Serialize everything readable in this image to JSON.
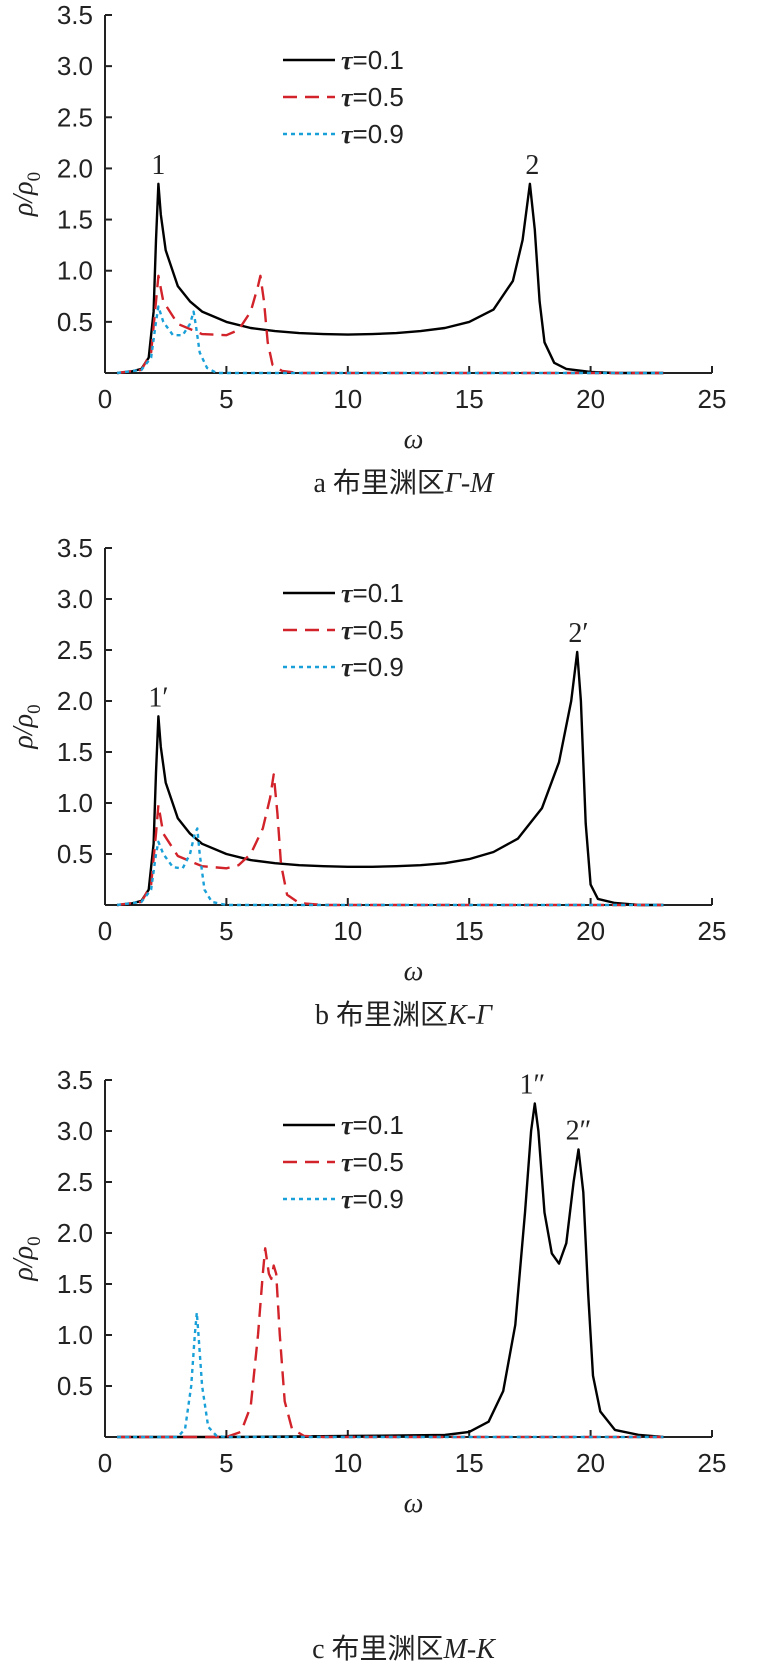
{
  "chart_data": [
    {
      "type": "line",
      "panel": "a",
      "caption": {
        "prefix": "a 布里渊区",
        "region": "Γ-M"
      },
      "xlabel": "ω",
      "ylabel": "ρ/ρ0",
      "xlim": [
        0,
        25
      ],
      "ylim": [
        0,
        3.5
      ],
      "xticks": [
        "0",
        "5",
        "10",
        "15",
        "20",
        "25"
      ],
      "yticks": [
        "0.5",
        "1.0",
        "1.5",
        "2.0",
        "2.5",
        "3.0",
        "3.5"
      ],
      "legend_position": "top-left",
      "peak_labels": [
        {
          "text": "1",
          "x": 2.2,
          "y": 1.85
        },
        {
          "text": "2",
          "x": 17.6,
          "y": 1.85
        }
      ],
      "series": [
        {
          "name": "τ=0.1",
          "style": "solid",
          "color": "#000000",
          "points": [
            [
              0.5,
              0.0
            ],
            [
              1.0,
              0.01
            ],
            [
              1.5,
              0.04
            ],
            [
              1.8,
              0.15
            ],
            [
              2.0,
              0.6
            ],
            [
              2.1,
              1.3
            ],
            [
              2.2,
              1.85
            ],
            [
              2.3,
              1.55
            ],
            [
              2.5,
              1.2
            ],
            [
              3.0,
              0.85
            ],
            [
              3.5,
              0.7
            ],
            [
              4,
              0.6
            ],
            [
              5,
              0.5
            ],
            [
              6,
              0.44
            ],
            [
              7,
              0.41
            ],
            [
              8,
              0.39
            ],
            [
              9,
              0.38
            ],
            [
              10,
              0.375
            ],
            [
              11,
              0.38
            ],
            [
              12,
              0.39
            ],
            [
              13,
              0.41
            ],
            [
              14,
              0.44
            ],
            [
              15,
              0.5
            ],
            [
              16,
              0.62
            ],
            [
              16.8,
              0.9
            ],
            [
              17.2,
              1.3
            ],
            [
              17.5,
              1.85
            ],
            [
              17.7,
              1.4
            ],
            [
              17.9,
              0.7
            ],
            [
              18.1,
              0.3
            ],
            [
              18.5,
              0.1
            ],
            [
              19,
              0.04
            ],
            [
              20,
              0.01
            ],
            [
              21,
              0.0
            ],
            [
              23,
              0.0
            ]
          ]
        },
        {
          "name": "τ=0.5",
          "style": "dashed",
          "color": "#d2232a",
          "points": [
            [
              0.5,
              0.0
            ],
            [
              1.5,
              0.03
            ],
            [
              1.9,
              0.2
            ],
            [
              2.1,
              0.7
            ],
            [
              2.2,
              0.95
            ],
            [
              2.4,
              0.7
            ],
            [
              3.0,
              0.48
            ],
            [
              4,
              0.38
            ],
            [
              5,
              0.37
            ],
            [
              5.5,
              0.42
            ],
            [
              6.0,
              0.6
            ],
            [
              6.3,
              0.85
            ],
            [
              6.4,
              0.95
            ],
            [
              6.55,
              0.7
            ],
            [
              6.7,
              0.3
            ],
            [
              6.9,
              0.08
            ],
            [
              7.3,
              0.02
            ],
            [
              8,
              0.0
            ],
            [
              23,
              0.0
            ]
          ]
        },
        {
          "name": "τ=0.9",
          "style": "dotted",
          "color": "#1aa0d8",
          "points": [
            [
              0.5,
              0.0
            ],
            [
              1.5,
              0.03
            ],
            [
              1.9,
              0.15
            ],
            [
              2.1,
              0.5
            ],
            [
              2.2,
              0.65
            ],
            [
              2.4,
              0.5
            ],
            [
              2.8,
              0.37
            ],
            [
              3.2,
              0.37
            ],
            [
              3.5,
              0.48
            ],
            [
              3.65,
              0.6
            ],
            [
              3.75,
              0.45
            ],
            [
              3.9,
              0.2
            ],
            [
              4.2,
              0.05
            ],
            [
              4.6,
              0.0
            ],
            [
              23,
              0.0
            ]
          ]
        }
      ]
    },
    {
      "type": "line",
      "panel": "b",
      "caption": {
        "prefix": "b 布里渊区",
        "region": "K-Γ"
      },
      "xlabel": "ω",
      "ylabel": "ρ/ρ0",
      "xlim": [
        0,
        25
      ],
      "ylim": [
        0,
        3.5
      ],
      "xticks": [
        "0",
        "5",
        "10",
        "15",
        "20",
        "25"
      ],
      "yticks": [
        "0.5",
        "1.0",
        "1.5",
        "2.0",
        "2.5",
        "3.0",
        "3.5"
      ],
      "legend_position": "top-left",
      "peak_labels": [
        {
          "text": "1′",
          "x": 2.2,
          "y": 1.85
        },
        {
          "text": "2′",
          "x": 19.5,
          "y": 2.48
        }
      ],
      "series": [
        {
          "name": "τ=0.1",
          "style": "solid",
          "color": "#000000",
          "points": [
            [
              0.5,
              0.0
            ],
            [
              1.0,
              0.01
            ],
            [
              1.5,
              0.04
            ],
            [
              1.8,
              0.15
            ],
            [
              2.0,
              0.6
            ],
            [
              2.1,
              1.3
            ],
            [
              2.2,
              1.85
            ],
            [
              2.3,
              1.55
            ],
            [
              2.5,
              1.2
            ],
            [
              3.0,
              0.85
            ],
            [
              3.5,
              0.7
            ],
            [
              4,
              0.6
            ],
            [
              5,
              0.5
            ],
            [
              6,
              0.44
            ],
            [
              7,
              0.41
            ],
            [
              8,
              0.39
            ],
            [
              9,
              0.38
            ],
            [
              10,
              0.375
            ],
            [
              11,
              0.375
            ],
            [
              12,
              0.38
            ],
            [
              13,
              0.39
            ],
            [
              14,
              0.41
            ],
            [
              15,
              0.45
            ],
            [
              16,
              0.52
            ],
            [
              17,
              0.65
            ],
            [
              18,
              0.95
            ],
            [
              18.7,
              1.4
            ],
            [
              19.2,
              2.0
            ],
            [
              19.45,
              2.48
            ],
            [
              19.6,
              2.0
            ],
            [
              19.8,
              0.8
            ],
            [
              20.0,
              0.2
            ],
            [
              20.3,
              0.06
            ],
            [
              21,
              0.02
            ],
            [
              22,
              0.0
            ],
            [
              23,
              0.0
            ]
          ]
        },
        {
          "name": "τ=0.5",
          "style": "dashed",
          "color": "#d2232a",
          "points": [
            [
              0.5,
              0.0
            ],
            [
              1.5,
              0.03
            ],
            [
              1.9,
              0.2
            ],
            [
              2.1,
              0.7
            ],
            [
              2.2,
              0.98
            ],
            [
              2.4,
              0.7
            ],
            [
              3.0,
              0.48
            ],
            [
              4,
              0.38
            ],
            [
              5,
              0.36
            ],
            [
              5.5,
              0.39
            ],
            [
              6.0,
              0.5
            ],
            [
              6.5,
              0.75
            ],
            [
              6.8,
              1.05
            ],
            [
              6.95,
              1.28
            ],
            [
              7.1,
              0.9
            ],
            [
              7.25,
              0.4
            ],
            [
              7.5,
              0.1
            ],
            [
              8,
              0.02
            ],
            [
              9,
              0.0
            ],
            [
              23,
              0.0
            ]
          ]
        },
        {
          "name": "τ=0.9",
          "style": "dotted",
          "color": "#1aa0d8",
          "points": [
            [
              0.5,
              0.0
            ],
            [
              1.5,
              0.03
            ],
            [
              1.9,
              0.15
            ],
            [
              2.1,
              0.5
            ],
            [
              2.2,
              0.62
            ],
            [
              2.4,
              0.5
            ],
            [
              2.8,
              0.37
            ],
            [
              3.2,
              0.36
            ],
            [
              3.5,
              0.5
            ],
            [
              3.7,
              0.7
            ],
            [
              3.8,
              0.75
            ],
            [
              3.9,
              0.5
            ],
            [
              4.1,
              0.15
            ],
            [
              4.4,
              0.03
            ],
            [
              5,
              0.0
            ],
            [
              23,
              0.0
            ]
          ]
        }
      ]
    },
    {
      "type": "line",
      "panel": "c",
      "caption": {
        "prefix": "c 布里渊区",
        "region": "M-K"
      },
      "xlabel": "ω",
      "ylabel": "ρ/ρ0",
      "xlim": [
        0,
        25
      ],
      "ylim": [
        0,
        3.5
      ],
      "xticks": [
        "0",
        "5",
        "10",
        "15",
        "20",
        "25"
      ],
      "yticks": [
        "0.5",
        "1.0",
        "1.5",
        "2.0",
        "2.5",
        "3.0",
        "3.5"
      ],
      "legend_position": "top-left",
      "peak_labels": [
        {
          "text": "1″",
          "x": 17.6,
          "y": 3.27
        },
        {
          "text": "2″",
          "x": 19.5,
          "y": 2.82
        }
      ],
      "series": [
        {
          "name": "τ=0.1",
          "style": "solid",
          "color": "#000000",
          "points": [
            [
              0.5,
              0.0
            ],
            [
              5,
              0.0
            ],
            [
              10,
              0.01
            ],
            [
              14,
              0.02
            ],
            [
              15,
              0.05
            ],
            [
              15.8,
              0.15
            ],
            [
              16.4,
              0.45
            ],
            [
              16.9,
              1.1
            ],
            [
              17.3,
              2.2
            ],
            [
              17.55,
              3.0
            ],
            [
              17.7,
              3.27
            ],
            [
              17.85,
              3.0
            ],
            [
              18.1,
              2.2
            ],
            [
              18.4,
              1.8
            ],
            [
              18.7,
              1.7
            ],
            [
              19.0,
              1.9
            ],
            [
              19.3,
              2.5
            ],
            [
              19.5,
              2.82
            ],
            [
              19.7,
              2.4
            ],
            [
              19.9,
              1.4
            ],
            [
              20.1,
              0.6
            ],
            [
              20.4,
              0.25
            ],
            [
              21,
              0.07
            ],
            [
              22,
              0.02
            ],
            [
              23,
              0.0
            ]
          ]
        },
        {
          "name": "τ=0.5",
          "style": "dashed",
          "color": "#d2232a",
          "points": [
            [
              0.5,
              0.0
            ],
            [
              5,
              0.0
            ],
            [
              5.6,
              0.05
            ],
            [
              6.0,
              0.3
            ],
            [
              6.3,
              1.0
            ],
            [
              6.5,
              1.6
            ],
            [
              6.6,
              1.85
            ],
            [
              6.75,
              1.6
            ],
            [
              6.85,
              1.55
            ],
            [
              6.95,
              1.68
            ],
            [
              7.05,
              1.6
            ],
            [
              7.2,
              1.0
            ],
            [
              7.4,
              0.35
            ],
            [
              7.7,
              0.08
            ],
            [
              8.2,
              0.01
            ],
            [
              9,
              0.0
            ],
            [
              23,
              0.0
            ]
          ]
        },
        {
          "name": "τ=0.9",
          "style": "dotted",
          "color": "#1aa0d8",
          "points": [
            [
              0.5,
              0.0
            ],
            [
              3.0,
              0.0
            ],
            [
              3.3,
              0.08
            ],
            [
              3.55,
              0.5
            ],
            [
              3.7,
              1.0
            ],
            [
              3.78,
              1.22
            ],
            [
              3.85,
              1.0
            ],
            [
              4.0,
              0.5
            ],
            [
              4.25,
              0.1
            ],
            [
              4.6,
              0.01
            ],
            [
              5,
              0.0
            ],
            [
              23,
              0.0
            ]
          ]
        }
      ]
    }
  ]
}
